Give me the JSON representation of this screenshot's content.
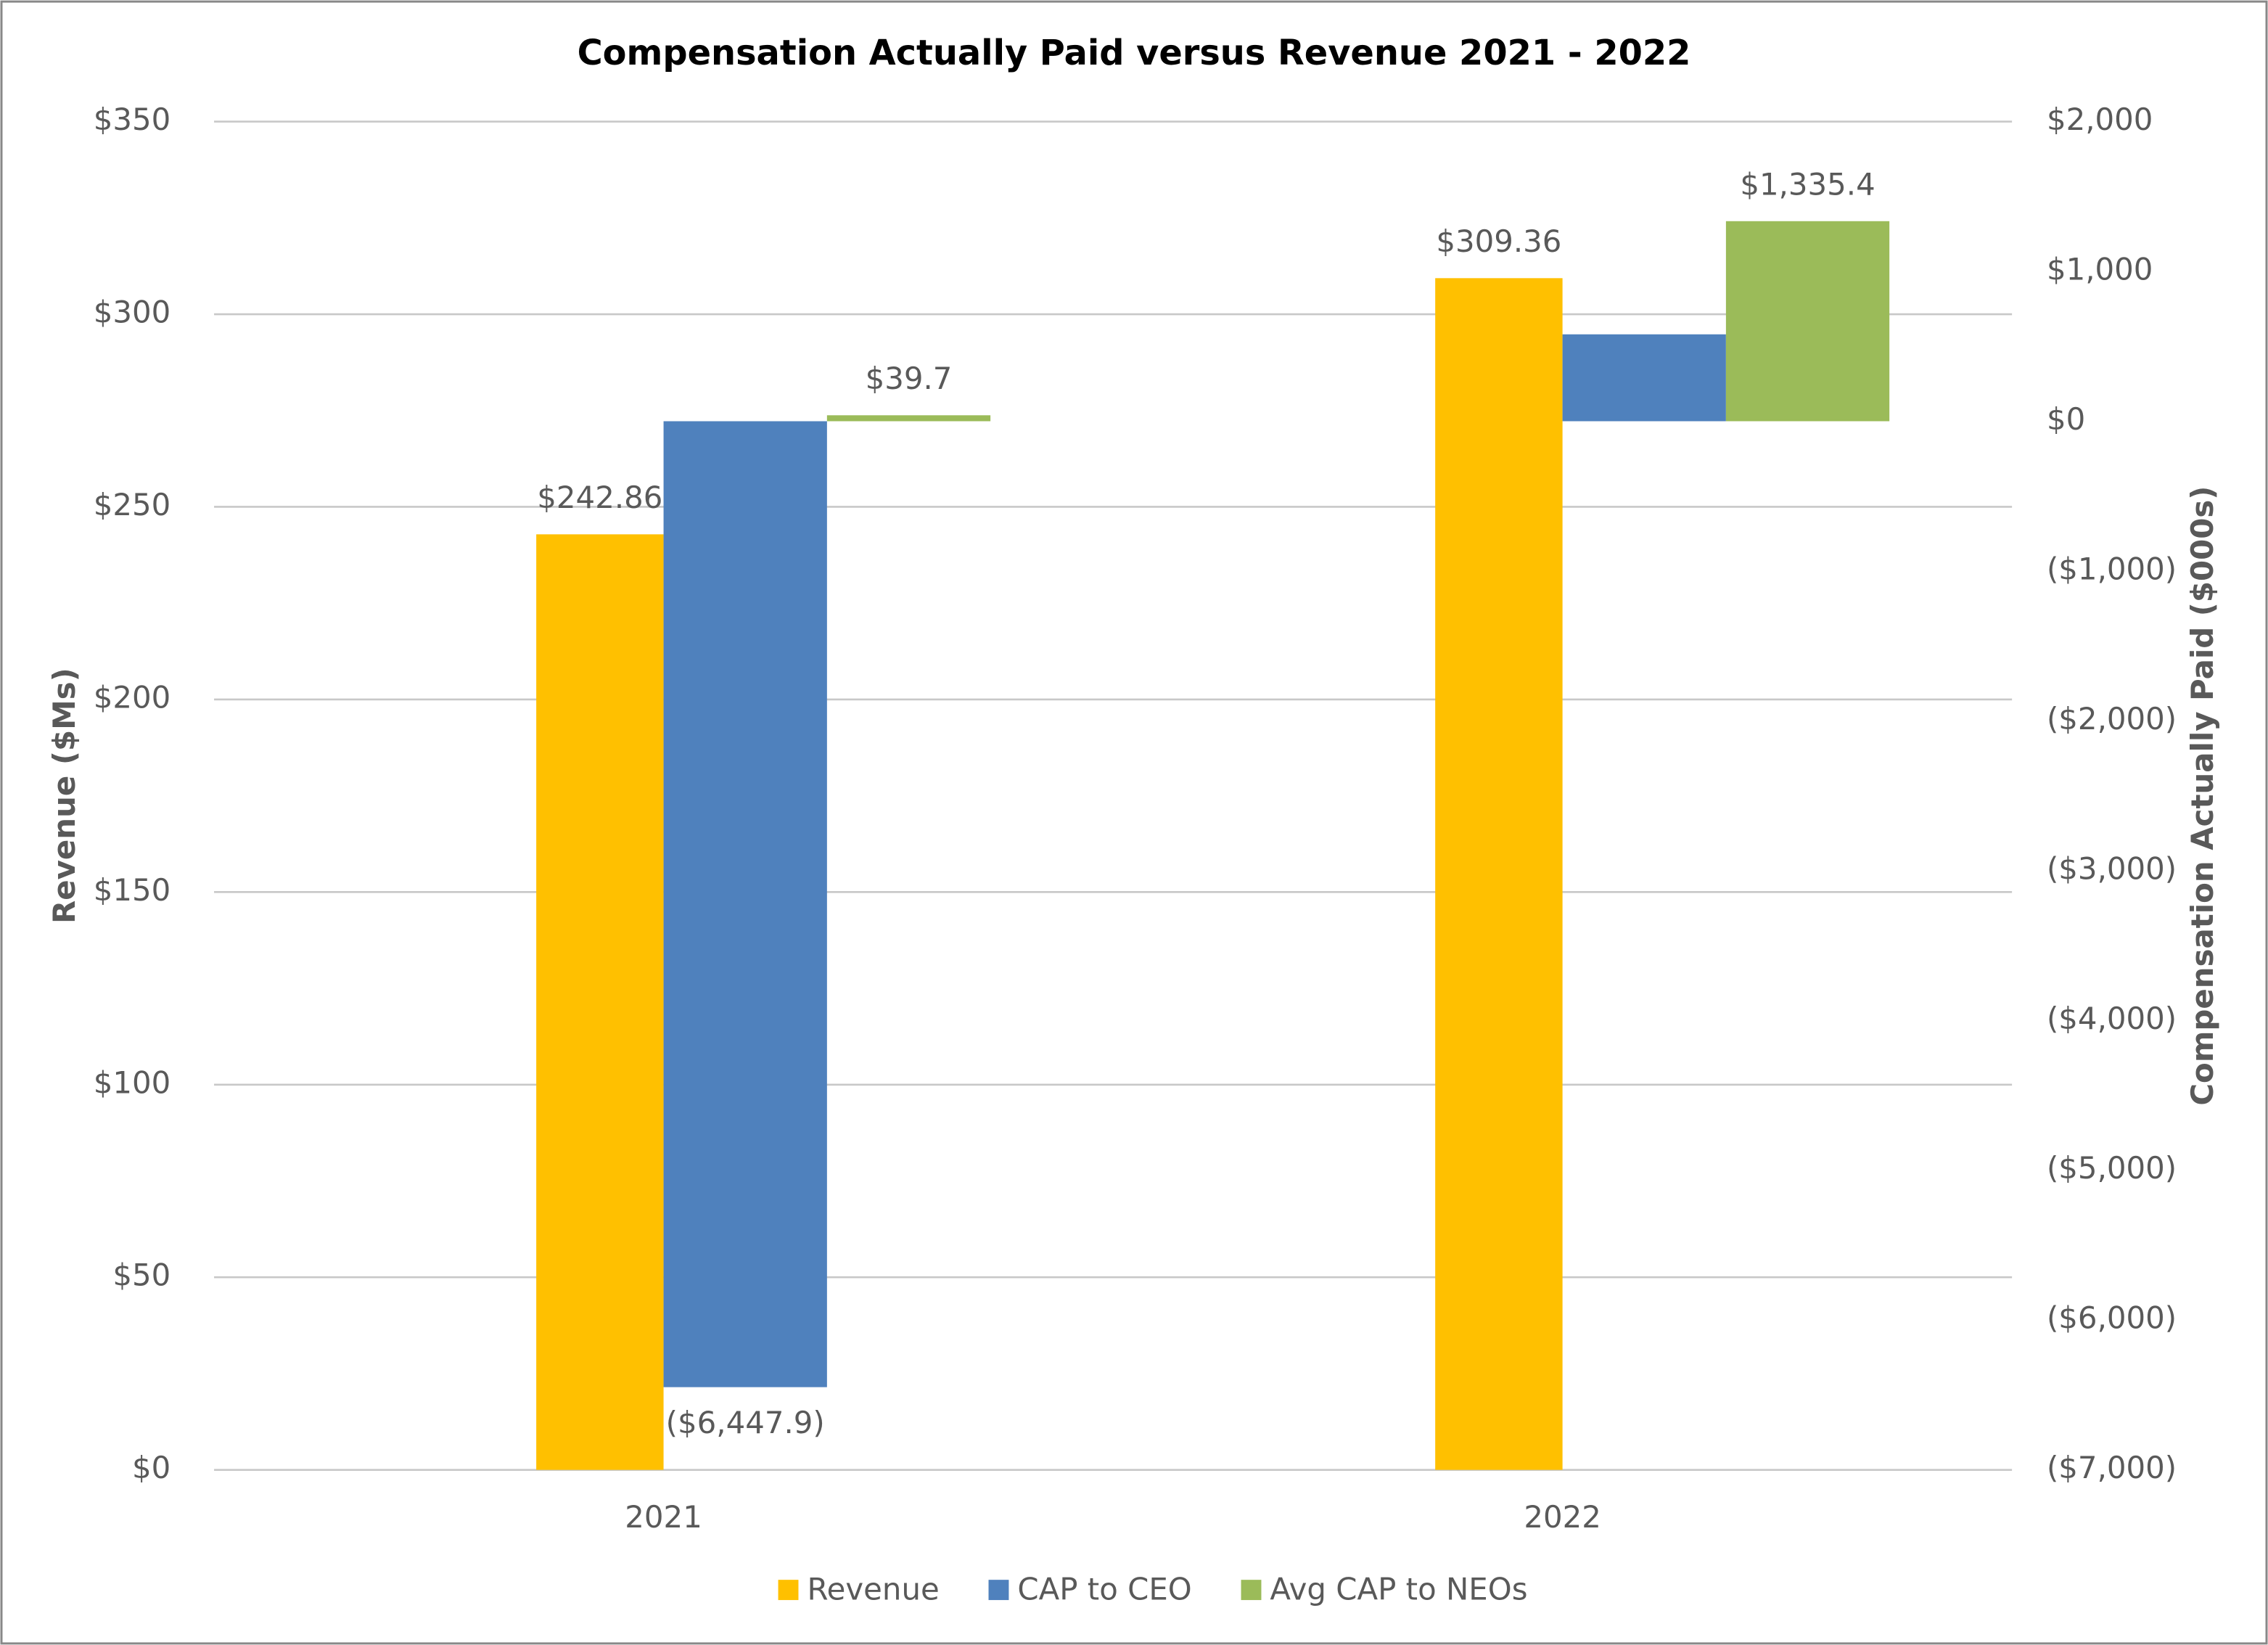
{
  "chart_data": {
    "type": "bar",
    "title": "Compensation Actually Paid versus Revenue 2021 - 2022",
    "categories": [
      "2021",
      "2022"
    ],
    "series": [
      {
        "name": "Revenue",
        "color": "#FFC000",
        "values": [
          242.86,
          309.36
        ],
        "value_labels": [
          "$242.86",
          "$309.36"
        ]
      },
      {
        "name": "CAP to CEO",
        "color": "#4F81BD",
        "axis": "y2",
        "values": [
          -6447.9,
          580
        ],
        "value_labels": [
          "($6,447.9)",
          null
        ]
      },
      {
        "name": "Avg CAP to NEOs",
        "color": "#9BBB59",
        "axis": "y2",
        "values": [
          39.7,
          1335.4
        ],
        "value_labels": [
          "$39.7",
          "$1,335.4"
        ]
      }
    ],
    "ylabel": "Revenue ($Ms)",
    "y2label": "Compensation Actually Paid ($000s)",
    "ylim": [
      0,
      350
    ],
    "yticks": [
      {
        "value": 0,
        "label": "$0"
      },
      {
        "value": 50,
        "label": "$50"
      },
      {
        "value": 100,
        "label": "$100"
      },
      {
        "value": 150,
        "label": "$150"
      },
      {
        "value": 200,
        "label": "$200"
      },
      {
        "value": 250,
        "label": "$250"
      },
      {
        "value": 300,
        "label": "$300"
      },
      {
        "value": 350,
        "label": "$350"
      }
    ],
    "y2lim": [
      -7000,
      2000
    ],
    "y2ticks": [
      {
        "value": -7000,
        "label": "($7,000)"
      },
      {
        "value": -6000,
        "label": "($6,000)"
      },
      {
        "value": -5000,
        "label": "($5,000)"
      },
      {
        "value": -4000,
        "label": "($4,000)"
      },
      {
        "value": -3000,
        "label": "($3,000)"
      },
      {
        "value": -2000,
        "label": "($2,000)"
      },
      {
        "value": -1000,
        "label": "($1,000)"
      },
      {
        "value": 0,
        "label": "$0"
      },
      {
        "value": 1000,
        "label": "$1,000"
      },
      {
        "value": 2000,
        "label": "$2,000"
      }
    ],
    "grid": true,
    "legend": "bottom"
  }
}
